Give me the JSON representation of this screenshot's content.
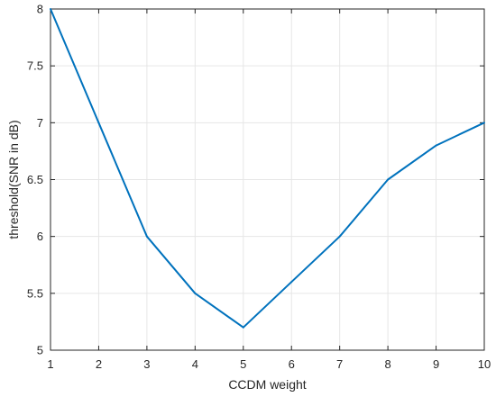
{
  "chart_data": {
    "type": "line",
    "xlabel": "CCDM weight",
    "ylabel": "threshold(SNR in dB)",
    "xlim": [
      1,
      10
    ],
    "ylim": [
      5,
      8
    ],
    "xticks": [
      1,
      2,
      3,
      4,
      5,
      6,
      7,
      8,
      9,
      10
    ],
    "yticks": [
      5,
      5.5,
      6,
      6.5,
      7,
      7.5,
      8
    ],
    "grid": true,
    "series": [
      {
        "color": "#0072BD",
        "x": [
          1,
          2,
          3,
          4,
          5,
          6,
          7,
          8,
          9,
          10
        ],
        "y": [
          8,
          7,
          6,
          5.5,
          5.2,
          5.6,
          6,
          6.5,
          6.8,
          7
        ]
      }
    ]
  }
}
